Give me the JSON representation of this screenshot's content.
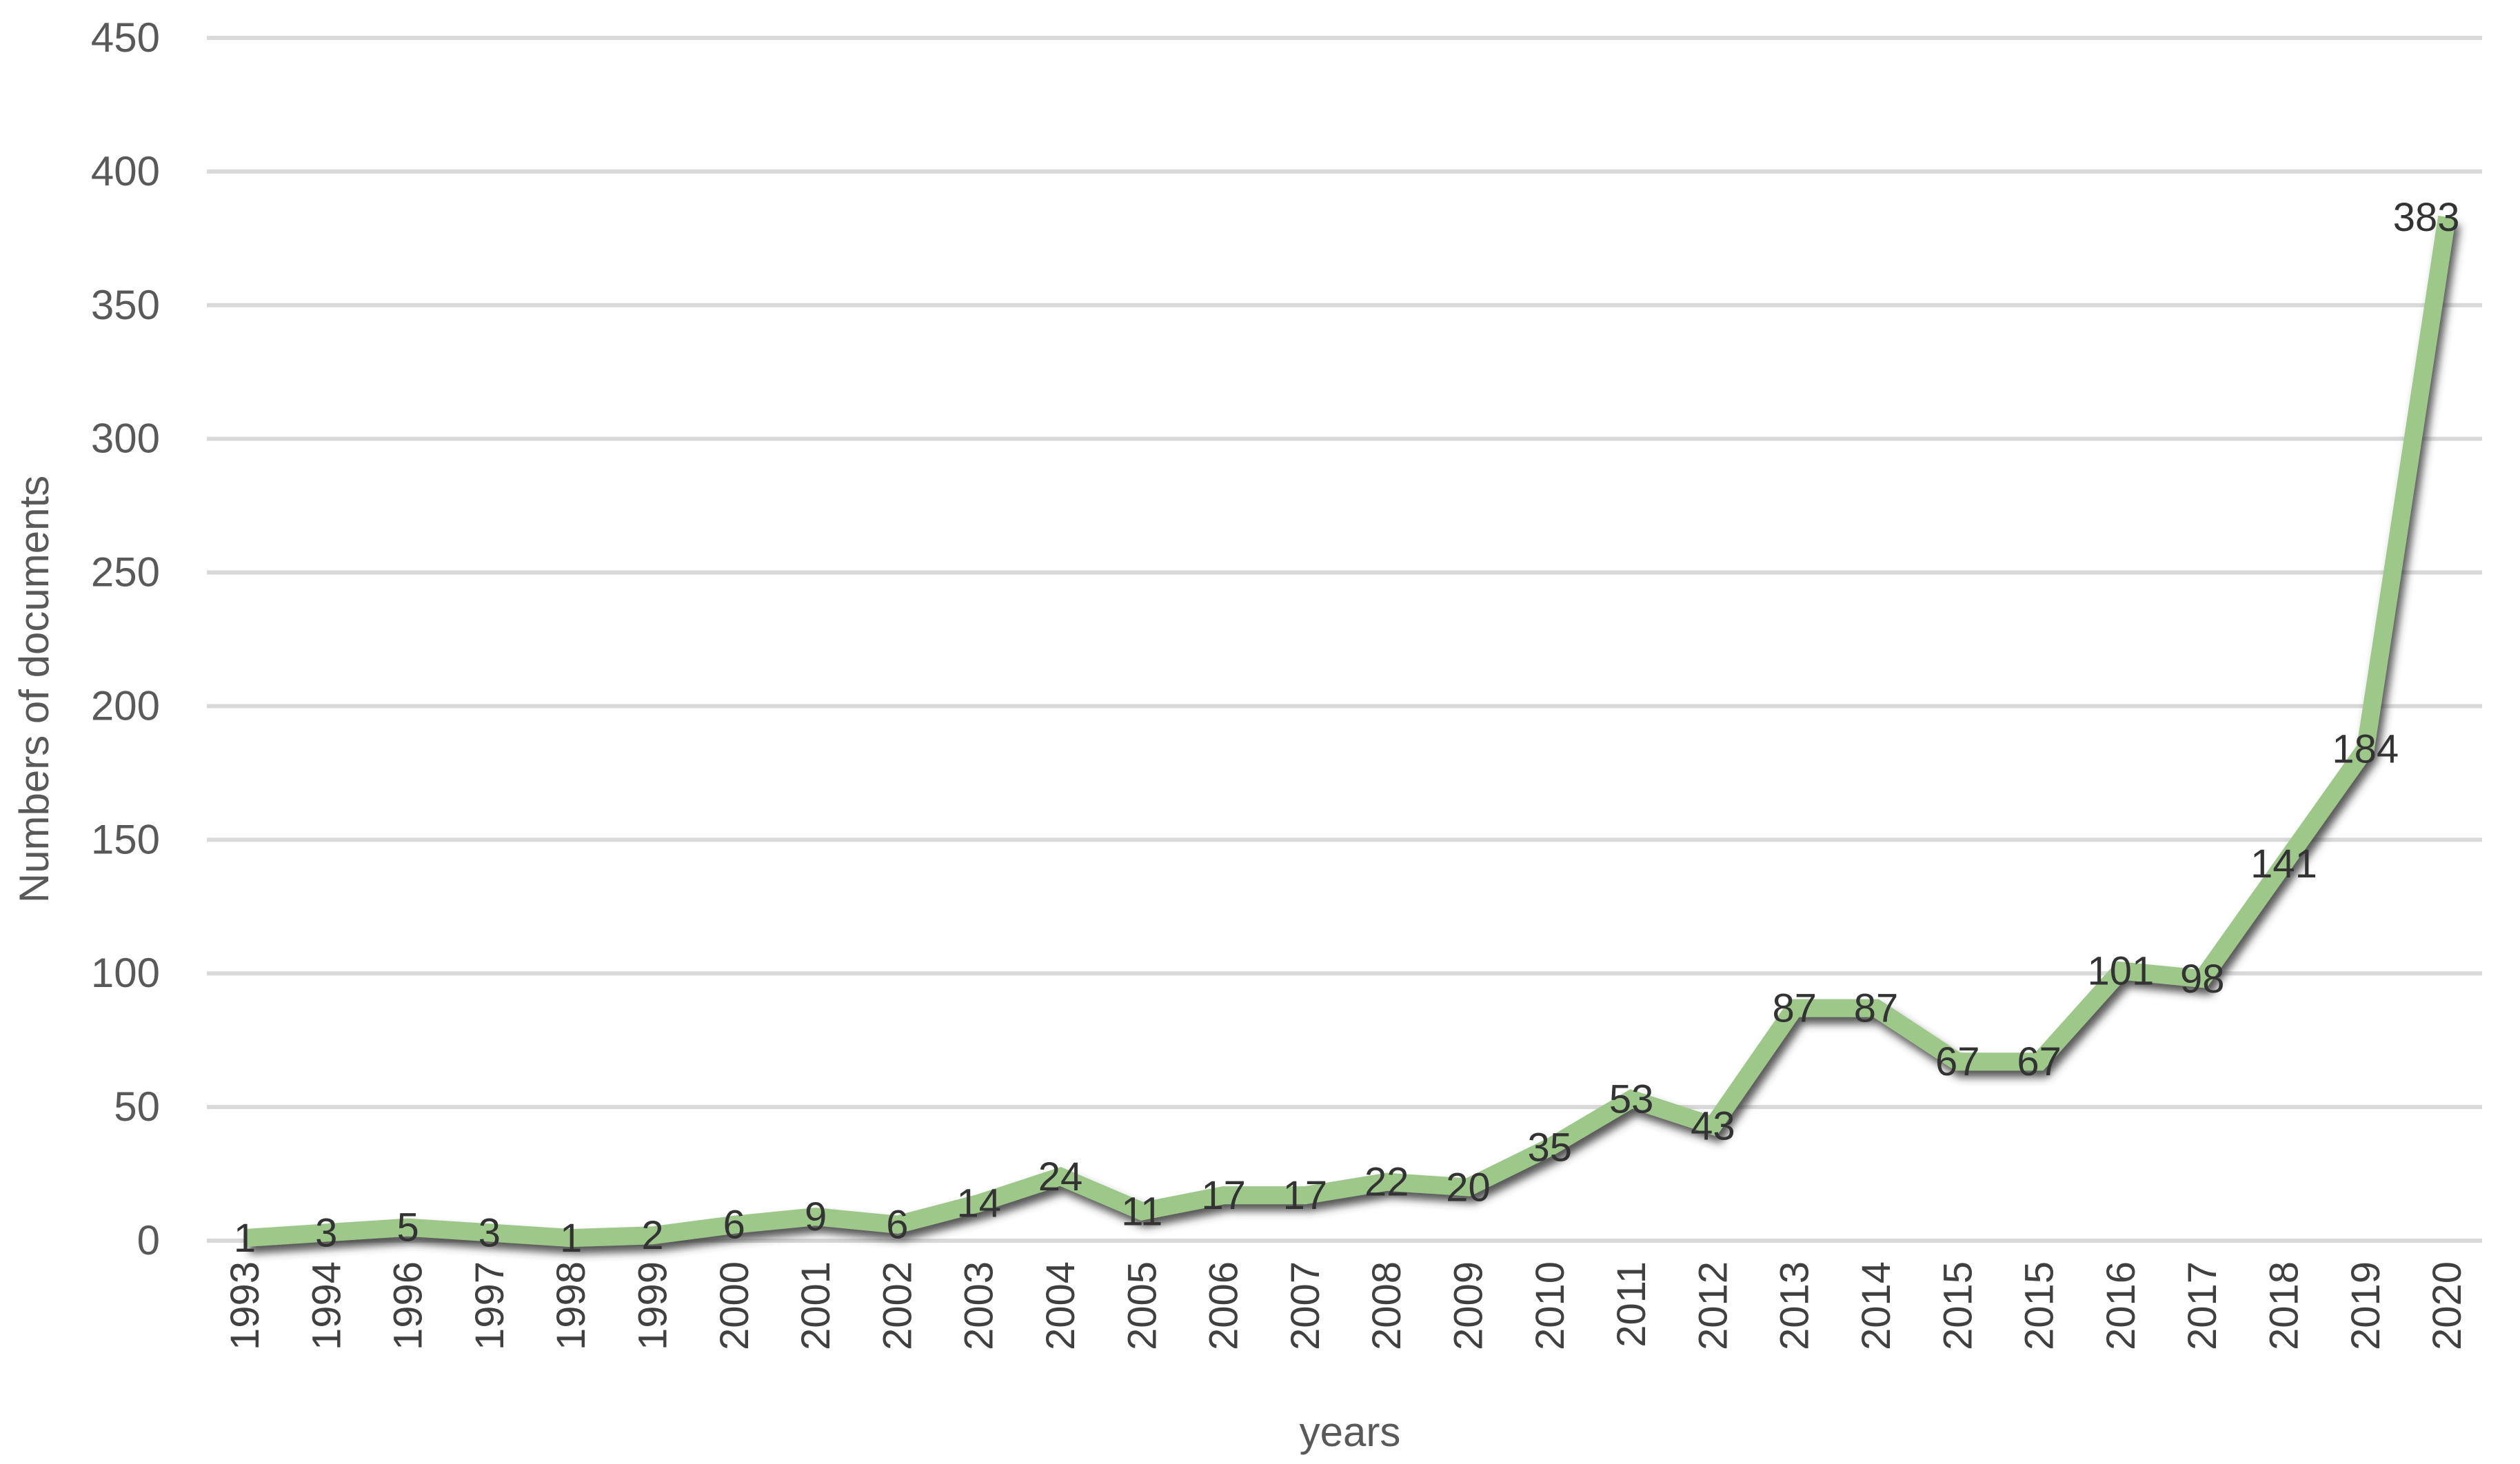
{
  "chart_data": {
    "type": "line",
    "title": "",
    "xlabel": "years",
    "ylabel": "Numbers of documents",
    "ylim": [
      0,
      450
    ],
    "yticks": [
      0,
      50,
      100,
      150,
      200,
      250,
      300,
      350,
      400,
      450
    ],
    "grid": true,
    "legend": "none",
    "categories": [
      "1993",
      "1994",
      "1996",
      "1997",
      "1998",
      "1999",
      "2000",
      "2001",
      "2002",
      "2003",
      "2004",
      "2005",
      "2006",
      "2007",
      "2008",
      "2009",
      "2010",
      "2011",
      "2012",
      "2013",
      "2014",
      "2015",
      "2015",
      "2016",
      "2017",
      "2018",
      "2019",
      "2020"
    ],
    "series": [
      {
        "values": [
          1,
          3,
          5,
          3,
          1,
          2,
          6,
          9,
          6,
          14,
          24,
          11,
          17,
          17,
          22,
          20,
          35,
          53,
          43,
          87,
          87,
          67,
          67,
          101,
          98,
          141,
          184,
          383
        ]
      }
    ],
    "colors": {
      "line": "#9dc88a",
      "shadow": "#4a4a4a",
      "grid": "#d9d9d9"
    }
  }
}
